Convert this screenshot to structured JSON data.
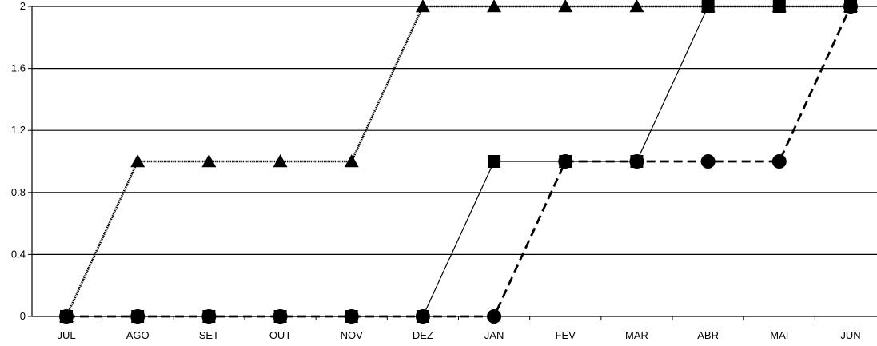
{
  "chart_data": {
    "type": "line",
    "title": "",
    "xlabel": "",
    "ylabel": "",
    "categories": [
      "JUL",
      "AGO",
      "SET",
      "OUT",
      "NOV",
      "DEZ",
      "JAN",
      "FEV",
      "MAR",
      "ABR",
      "MAI",
      "JUN"
    ],
    "ylim": [
      0,
      2
    ],
    "yticks": [
      0,
      0.4,
      0.8,
      1.2,
      1.6,
      2
    ],
    "ytick_labels": [
      "0",
      "0.4",
      "0.8",
      "1.2",
      "1.6",
      "2"
    ],
    "grid": "horizontal",
    "legend": "none",
    "series": [
      {
        "marker": "triangle",
        "line_style": "dotted",
        "color": "#000000",
        "values": [
          0,
          1,
          1,
          1,
          1,
          2,
          2,
          2,
          2,
          2,
          2,
          2
        ]
      },
      {
        "marker": "square",
        "line_style": "solid",
        "color": "#000000",
        "values": [
          0,
          0,
          0,
          0,
          0,
          0,
          1,
          1,
          1,
          2,
          2,
          2
        ]
      },
      {
        "marker": "circle",
        "line_style": "dashed",
        "color": "#000000",
        "values": [
          0,
          0,
          0,
          0,
          0,
          0,
          0,
          1,
          1,
          1,
          1,
          2
        ]
      }
    ]
  }
}
